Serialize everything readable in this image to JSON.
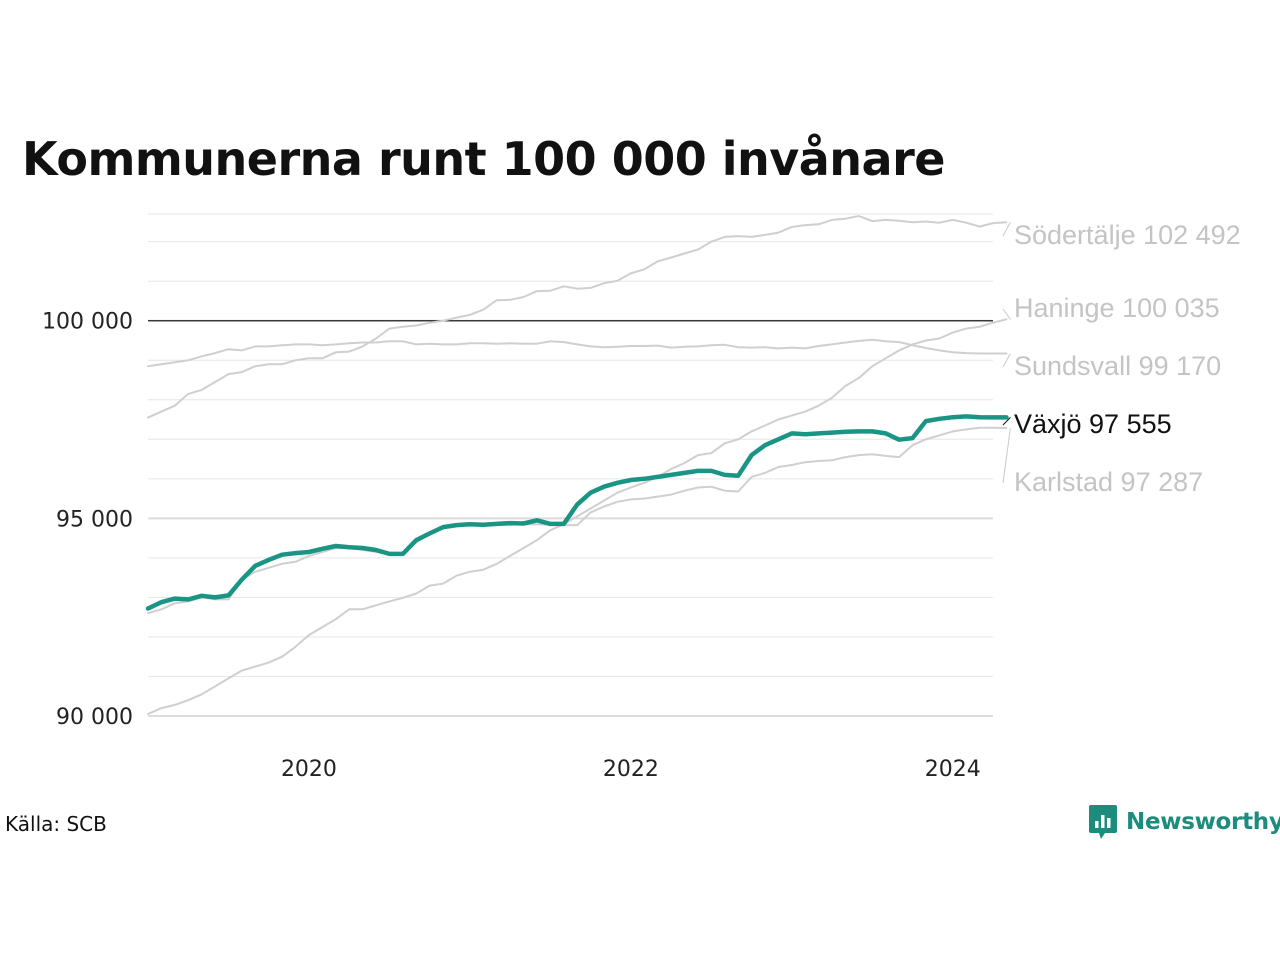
{
  "title": "Kommunerna runt 100 000 invånare",
  "source": "Källa: SCB",
  "brand": "Newsworthy",
  "colors": {
    "highlight": "#1a9585",
    "other": "#cfcfcf",
    "reference": "#222222",
    "grid": "#e6e6e6"
  },
  "chart_data": {
    "type": "line",
    "title": "Kommunerna runt 100 000 invånare",
    "xlabel": "",
    "ylabel": "",
    "xlim": [
      2019.0,
      2024.25
    ],
    "ylim": [
      90000,
      102700
    ],
    "x_ticks": [
      2020,
      2022,
      2024
    ],
    "x_tick_labels": [
      "2020",
      "2022",
      "2024"
    ],
    "y_ticks": [
      90000,
      95000,
      100000
    ],
    "y_tick_labels": [
      "90 000",
      "95 000",
      "100 000"
    ],
    "grid": true,
    "reference_line": 100000,
    "x_start": 2019.0,
    "x_step": 0.0833333,
    "series": [
      {
        "name": "Södertälje",
        "end_label": "Södertälje 102 492",
        "highlight": false,
        "values": [
          97550,
          97700,
          97850,
          98150,
          98250,
          98450,
          98650,
          98700,
          98850,
          98900,
          98900,
          99000,
          99050,
          99050,
          99200,
          99220,
          99350,
          99550,
          99800,
          99850,
          99880,
          99950,
          100000,
          100080,
          100150,
          100280,
          100520,
          100530,
          100600,
          100750,
          100760,
          100870,
          100810,
          100830,
          100950,
          101010,
          101200,
          101300,
          101500,
          101600,
          101700,
          101800,
          102000,
          102120,
          102140,
          102120,
          102170,
          102230,
          102370,
          102420,
          102440,
          102550,
          102580,
          102650,
          102520,
          102550,
          102530,
          102490,
          102510,
          102480,
          102550,
          102480,
          102380,
          102470,
          102492
        ]
      },
      {
        "name": "Haninge",
        "end_label": "Haninge 100 035",
        "highlight": false,
        "values": [
          90050,
          90200,
          90280,
          90400,
          90550,
          90750,
          90950,
          91150,
          91250,
          91350,
          91500,
          91750,
          92050,
          92250,
          92450,
          92700,
          92700,
          92800,
          92900,
          92990,
          93100,
          93300,
          93350,
          93550,
          93650,
          93700,
          93850,
          94050,
          94250,
          94450,
          94700,
          94850,
          95050,
          95250,
          95450,
          95650,
          95780,
          95900,
          96050,
          96250,
          96400,
          96600,
          96650,
          96900,
          97000,
          97200,
          97350,
          97500,
          97600,
          97700,
          97850,
          98050,
          98350,
          98550,
          98850,
          99050,
          99250,
          99400,
          99500,
          99550,
          99700,
          99800,
          99850,
          99950,
          100035
        ]
      },
      {
        "name": "Sundsvall",
        "end_label": "Sundsvall  99 170",
        "highlight": false,
        "values": [
          98850,
          98900,
          98950,
          99000,
          99100,
          99180,
          99280,
          99250,
          99350,
          99350,
          99380,
          99400,
          99400,
          99380,
          99400,
          99430,
          99450,
          99450,
          99480,
          99480,
          99400,
          99420,
          99400,
          99400,
          99430,
          99430,
          99420,
          99430,
          99420,
          99420,
          99480,
          99460,
          99400,
          99350,
          99330,
          99340,
          99360,
          99360,
          99370,
          99320,
          99340,
          99350,
          99380,
          99390,
          99330,
          99320,
          99330,
          99300,
          99320,
          99300,
          99360,
          99400,
          99450,
          99490,
          99520,
          99480,
          99460,
          99380,
          99310,
          99250,
          99200,
          99180,
          99170,
          99170,
          99170
        ]
      },
      {
        "name": "Karlstad",
        "end_label": "Karlstad  97 287",
        "highlight": false,
        "values": [
          92600,
          92700,
          92850,
          92900,
          93000,
          92950,
          92950,
          93450,
          93650,
          93750,
          93850,
          93900,
          94050,
          94150,
          94250,
          94250,
          94200,
          94150,
          94100,
          94100,
          94400,
          94600,
          94750,
          94800,
          94830,
          94840,
          94830,
          94840,
          94850,
          94850,
          94840,
          94830,
          94830,
          95150,
          95300,
          95420,
          95480,
          95500,
          95550,
          95600,
          95700,
          95780,
          95800,
          95700,
          95680,
          96050,
          96150,
          96300,
          96350,
          96420,
          96450,
          96470,
          96550,
          96600,
          96620,
          96580,
          96550,
          96850,
          97000,
          97100,
          97200,
          97250,
          97290,
          97290,
          97287
        ]
      },
      {
        "name": "Växjö",
        "end_label": "Växjö  97 555",
        "highlight": true,
        "values": [
          92720,
          92880,
          92970,
          92950,
          93040,
          93000,
          93050,
          93450,
          93800,
          93950,
          94080,
          94120,
          94150,
          94230,
          94300,
          94270,
          94250,
          94200,
          94100,
          94100,
          94450,
          94620,
          94780,
          94830,
          94850,
          94840,
          94860,
          94880,
          94870,
          94950,
          94860,
          94860,
          95350,
          95650,
          95800,
          95900,
          95970,
          96000,
          96050,
          96100,
          96150,
          96200,
          96200,
          96100,
          96080,
          96600,
          96850,
          97000,
          97150,
          97130,
          97150,
          97170,
          97190,
          97200,
          97200,
          97150,
          96990,
          97030,
          97460,
          97520,
          97560,
          97580,
          97560,
          97555,
          97555
        ]
      }
    ]
  }
}
